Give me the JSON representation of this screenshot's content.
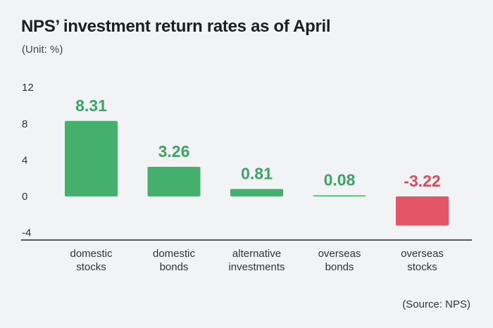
{
  "chart_data": {
    "type": "bar",
    "title": "NPS’ investment return rates as of April",
    "subtitle": "(Unit: %)",
    "source": "(Source: NPS)",
    "categories": [
      [
        "domestic",
        "stocks"
      ],
      [
        "domestic",
        "bonds"
      ],
      [
        "alternative",
        "investments"
      ],
      [
        "overseas",
        "bonds"
      ],
      [
        "overseas",
        "stocks"
      ]
    ],
    "values": [
      8.31,
      3.26,
      0.81,
      0.08,
      -3.22
    ],
    "value_labels": [
      "8.31",
      "3.26",
      "0.81",
      "0.08",
      "-3.22"
    ],
    "yticks": [
      "12",
      "8",
      "4",
      "0",
      "-4"
    ],
    "ylim": [
      -4,
      12
    ],
    "grid": false,
    "colors": {
      "positive": "#45b06d",
      "negative": "#e35567",
      "positive_label": "#3aa564",
      "negative_label": "#d94a5c",
      "axis": "#222222"
    }
  }
}
